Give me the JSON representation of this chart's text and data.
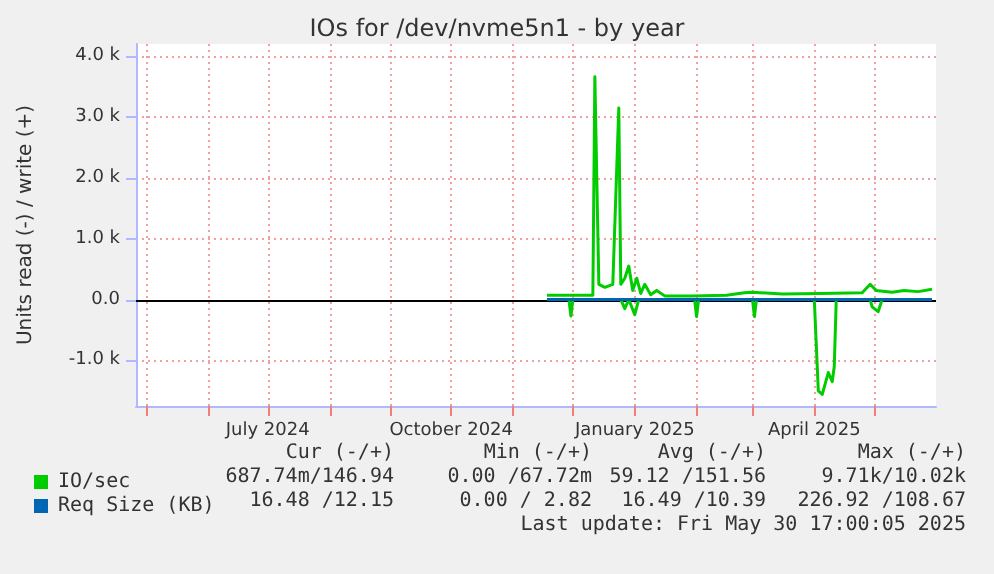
{
  "chart_data": {
    "type": "line",
    "title": "IOs for /dev/nvme5n1 - by year",
    "ylabel": "Units read (-) / write (+)",
    "xlim": [
      "2024-04-26",
      "2025-06-01"
    ],
    "xticks": [
      {
        "value": "2024-05-01",
        "label": null
      },
      {
        "value": "2024-06-01",
        "label": null
      },
      {
        "value": "2024-07-01",
        "label": "July 2024"
      },
      {
        "value": "2024-08-01",
        "label": null
      },
      {
        "value": "2024-09-01",
        "label": null
      },
      {
        "value": "2024-10-01",
        "label": "October 2024"
      },
      {
        "value": "2024-11-01",
        "label": null
      },
      {
        "value": "2024-12-01",
        "label": null
      },
      {
        "value": "2025-01-01",
        "label": "January 2025"
      },
      {
        "value": "2025-02-01",
        "label": null
      },
      {
        "value": "2025-03-01",
        "label": null
      },
      {
        "value": "2025-04-01",
        "label": "April 2025"
      },
      {
        "value": "2025-05-01",
        "label": null
      }
    ],
    "ylim": [
      -1750,
      4200
    ],
    "yticks": [
      {
        "value": -1000,
        "label": "-1.0 k"
      },
      {
        "value": 0,
        "label": "0.0"
      },
      {
        "value": 1000,
        "label": "1.0 k"
      },
      {
        "value": 2000,
        "label": "2.0 k"
      },
      {
        "value": 3000,
        "label": "3.0 k"
      },
      {
        "value": 4000,
        "label": "4.0 k"
      }
    ],
    "grid": true,
    "legend": "bottom left",
    "marker": "none",
    "line_style": "solid",
    "ref_lines": [
      {
        "axis": "y",
        "value": 0,
        "label": null,
        "color": "#000000"
      }
    ],
    "series": [
      {
        "name": "IO/sec",
        "color": "#00cc00",
        "x": [
          "2024-11-18",
          "2024-12-11",
          "2024-12-12",
          "2024-12-14",
          "2024-12-17",
          "2024-12-21",
          "2024-12-24",
          "2024-12-25",
          "2024-12-27",
          "2024-12-29",
          "2024-12-31",
          "2025-01-02",
          "2025-01-04",
          "2025-01-06",
          "2025-01-09",
          "2025-01-12",
          "2025-01-16",
          "2025-01-30",
          "2025-02-16",
          "2025-02-25",
          "2025-03-01",
          "2025-03-16",
          "2025-04-04",
          "2025-04-25",
          "2025-04-29",
          "2025-05-02",
          "2025-05-10",
          "2025-05-16",
          "2025-05-23",
          "2025-05-30"
        ],
        "values": [
          70,
          70,
          3660,
          250,
          200,
          250,
          3150,
          250,
          350,
          550,
          150,
          350,
          100,
          250,
          80,
          150,
          60,
          60,
          70,
          110,
          120,
          90,
          100,
          110,
          250,
          150,
          120,
          150,
          130,
          170
        ]
      },
      {
        "color": "#00cc00",
        "x": [
          "2024-11-18",
          "2024-11-29",
          "2024-11-30",
          "2024-12-01",
          "2024-12-25",
          "2024-12-27",
          "2024-12-29",
          "2025-01-01",
          "2025-01-03",
          "2025-01-31",
          "2025-02-01",
          "2025-02-02",
          "2025-03-01",
          "2025-03-02",
          "2025-03-03",
          "2025-04-01",
          "2025-04-03",
          "2025-04-05",
          "2025-04-08",
          "2025-04-10",
          "2025-04-11",
          "2025-04-12",
          "2025-04-29",
          "2025-04-30",
          "2025-05-03",
          "2025-05-05",
          "2025-05-30"
        ],
        "values": [
          0,
          0,
          -270,
          0,
          0,
          -150,
          0,
          -250,
          0,
          0,
          -280,
          0,
          0,
          -280,
          0,
          0,
          -1500,
          -1560,
          -1200,
          -1350,
          -1100,
          0,
          0,
          -120,
          -200,
          0,
          0
        ]
      },
      {
        "name": "Req Size (KB)",
        "color": "#0066b3",
        "x": [
          "2024-11-18",
          "2025-05-30"
        ],
        "values": [
          0,
          0
        ]
      }
    ],
    "annotations": [
      "Cur (-/+)",
      "Min (-/+)",
      "Avg (-/+)",
      "Max (-/+)",
      "687.74m/146.94",
      "0.00 /67.72m",
      "59.12 /151.56",
      "9.71k/10.02k",
      "16.48 /12.15",
      "0.00 / 2.82",
      "16.49 /10.39",
      "226.92 /108.67",
      "Last update: Fri May 30 17:00:05 2025"
    ]
  }
}
